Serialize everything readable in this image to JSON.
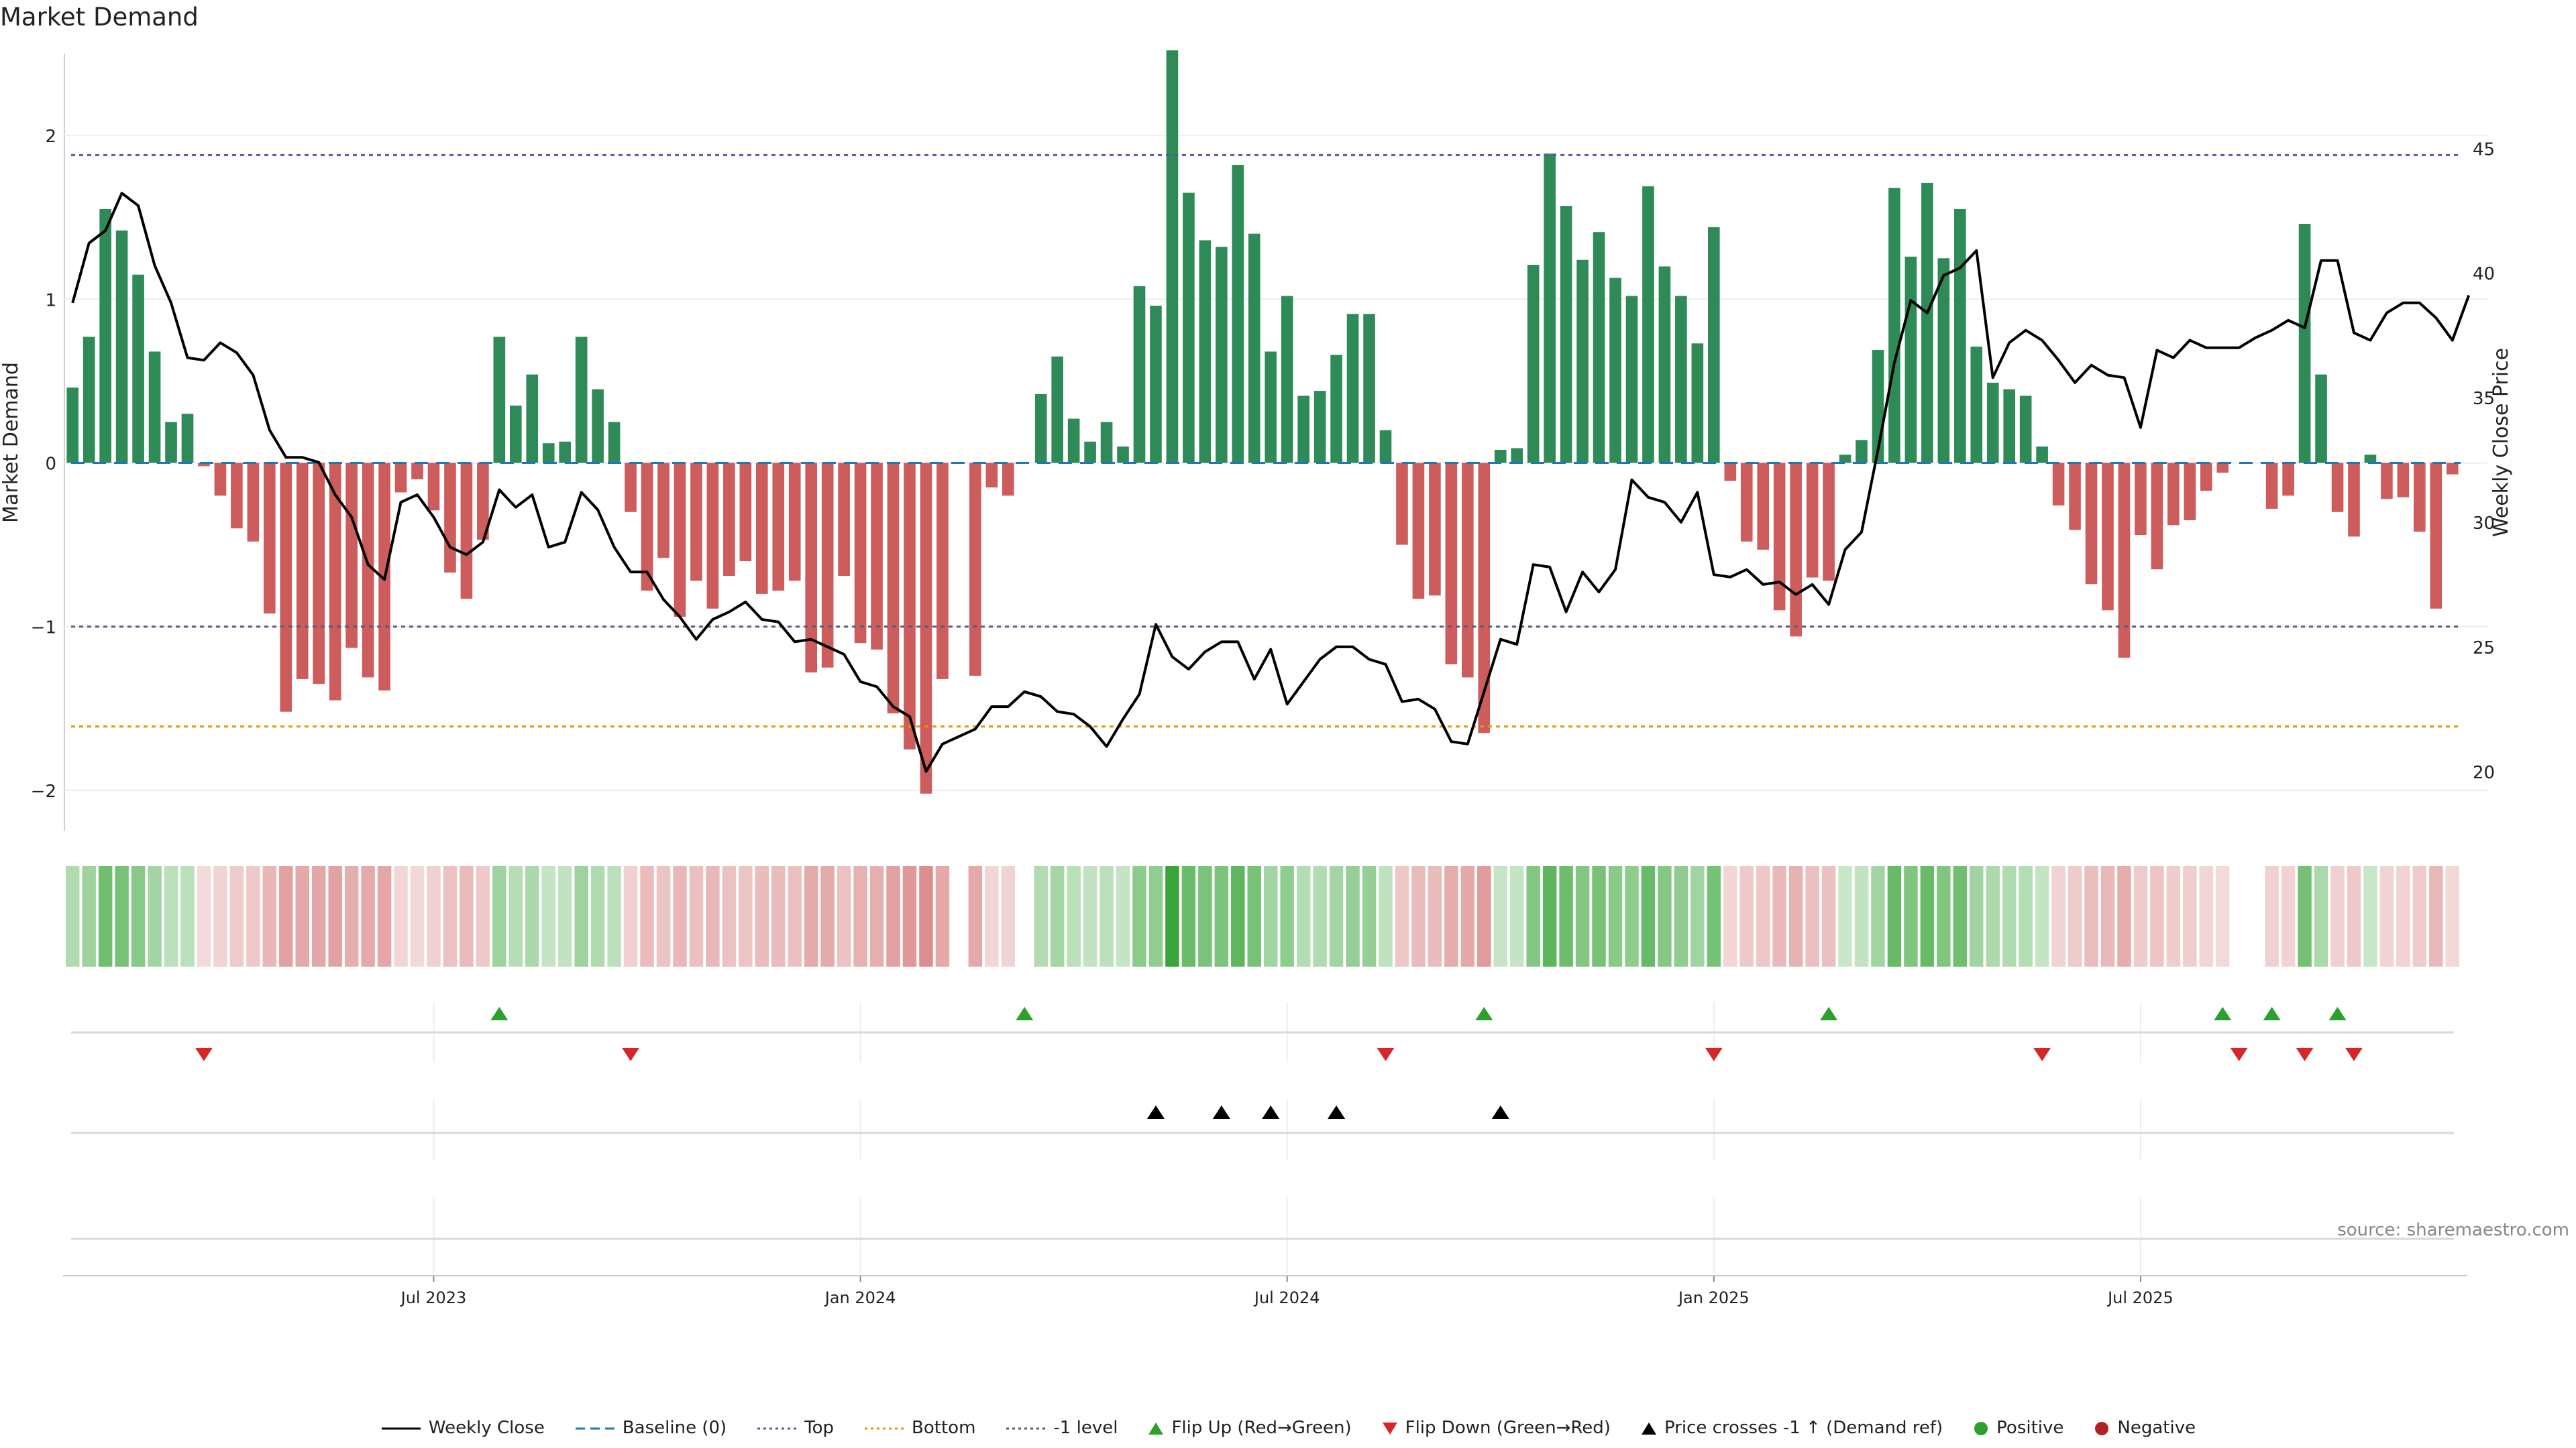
{
  "chart_data": {
    "type": "bar",
    "title": "Market Demand",
    "ylabel": "Market Demand",
    "y2label": "Weekly Close Price",
    "ylim": [
      -2.25,
      2.5
    ],
    "y2lim": [
      17.6,
      48.8
    ],
    "yticks": [
      "2",
      "1",
      "0",
      "−1",
      "−2"
    ],
    "ytick_values": [
      2,
      1,
      0,
      -1,
      -2
    ],
    "y2ticks": [
      "45",
      "40",
      "35",
      "30",
      "25",
      "20"
    ],
    "y2tick_values": [
      45,
      40,
      35,
      30,
      25,
      20
    ],
    "xtick_labels": [
      "Jul 2023",
      "Jan 2024",
      "Jul 2024",
      "Jan 2025",
      "Jul 2025"
    ],
    "xtick_week_index": [
      22,
      48,
      74,
      100,
      126
    ],
    "reference_lines": {
      "baseline": 0,
      "top": 1.88,
      "bottom": -1.61,
      "minus_one_level": -1.0
    },
    "demand": [
      0.46,
      0.77,
      1.55,
      1.42,
      1.15,
      0.68,
      0.25,
      0.3,
      -0.02,
      -0.2,
      -0.4,
      -0.48,
      -0.92,
      -1.52,
      -1.32,
      -1.35,
      -1.45,
      -1.13,
      -1.31,
      -1.39,
      -0.18,
      -0.1,
      -0.29,
      -0.67,
      -0.83,
      -0.47,
      0.77,
      0.35,
      0.54,
      0.12,
      0.13,
      0.77,
      0.45,
      0.25,
      -0.3,
      -0.78,
      -0.58,
      -0.94,
      -0.72,
      -0.89,
      -0.69,
      -0.6,
      -0.8,
      -0.78,
      -0.72,
      -1.28,
      -1.25,
      -0.69,
      -1.1,
      -1.14,
      -1.53,
      -1.75,
      -2.02,
      -1.32,
      null,
      -1.3,
      -0.15,
      -0.2,
      null,
      0.42,
      0.65,
      0.27,
      0.13,
      0.25,
      0.1,
      1.08,
      0.96,
      2.52,
      1.65,
      1.36,
      1.32,
      1.82,
      1.4,
      0.68,
      1.02,
      0.41,
      0.44,
      0.66,
      0.91,
      0.91,
      0.2,
      -0.5,
      -0.83,
      -0.81,
      -1.23,
      -1.31,
      -1.65,
      0.08,
      0.09,
      1.21,
      1.89,
      1.57,
      1.24,
      1.41,
      1.13,
      1.02,
      1.69,
      1.2,
      1.02,
      0.73,
      1.44,
      -0.11,
      -0.48,
      -0.53,
      -0.9,
      -1.06,
      -0.7,
      -0.72,
      0.05,
      0.14,
      0.69,
      1.68,
      1.26,
      1.71,
      1.25,
      1.55,
      0.71,
      0.49,
      0.45,
      0.41,
      0.1,
      -0.26,
      -0.41,
      -0.74,
      -0.9,
      -1.19,
      -0.44,
      -0.65,
      -0.38,
      -0.35,
      -0.17,
      -0.06,
      null,
      null,
      -0.28,
      -0.2,
      1.46,
      0.54,
      -0.3,
      -0.45,
      0.05,
      -0.22,
      -0.21,
      -0.42,
      -0.89,
      -0.07
    ],
    "close": [
      38.8,
      41.2,
      41.7,
      43.2,
      42.7,
      40.3,
      38.8,
      36.6,
      36.5,
      37.2,
      36.8,
      35.9,
      33.7,
      32.6,
      32.6,
      32.4,
      31.1,
      30.2,
      28.3,
      27.7,
      30.8,
      31.1,
      30.2,
      29.0,
      28.7,
      29.2,
      31.3,
      30.6,
      31.1,
      29.0,
      29.2,
      31.2,
      30.5,
      29.0,
      28.0,
      28.0,
      26.9,
      26.2,
      25.3,
      26.1,
      26.4,
      26.8,
      26.1,
      26.0,
      25.2,
      25.3,
      25.0,
      24.7,
      23.6,
      23.4,
      22.6,
      22.2,
      20.0,
      21.1,
      21.4,
      21.7,
      22.6,
      22.6,
      23.2,
      23.0,
      22.4,
      22.3,
      21.8,
      21.0,
      22.1,
      23.1,
      25.9,
      24.6,
      24.1,
      24.8,
      25.2,
      25.2,
      23.7,
      24.9,
      22.7,
      23.6,
      24.5,
      25.0,
      25.0,
      24.5,
      24.3,
      22.8,
      22.9,
      22.5,
      21.2,
      21.1,
      23.2,
      25.3,
      25.1,
      28.3,
      28.2,
      26.4,
      28.0,
      27.2,
      28.1,
      31.7,
      31.0,
      30.8,
      30.0,
      31.2,
      27.9,
      27.8,
      28.1,
      27.5,
      27.6,
      27.1,
      27.5,
      26.7,
      28.9,
      29.6,
      32.9,
      36.4,
      38.9,
      38.4,
      39.9,
      40.2,
      40.9,
      35.8,
      37.2,
      37.7,
      37.3,
      36.5,
      35.6,
      36.3,
      35.9,
      35.8,
      33.8,
      36.9,
      36.6,
      37.3,
      37.0,
      37.0,
      37.0,
      37.4,
      37.7,
      38.1,
      37.8,
      40.5,
      40.5,
      37.6,
      37.3,
      38.4,
      38.8,
      38.8,
      38.2,
      37.3,
      39.1
    ],
    "heat_strip": "demand-colored weekly strip (green = positive, red = negative, darker = stronger)",
    "flip_up_week_index": [
      26,
      58,
      86,
      107,
      131,
      134,
      138
    ],
    "flip_down_week_index": [
      8,
      34,
      80,
      100,
      120,
      132,
      136,
      139
    ],
    "price_cross_week_index": [
      66,
      70,
      73,
      77,
      87
    ],
    "source": "source: sharemaestro.com"
  },
  "legend": [
    {
      "label": "Weekly Close",
      "kind": "line",
      "color": "#000000",
      "dash": "solid"
    },
    {
      "label": "Baseline (0)",
      "kind": "line",
      "color": "#1f77b4",
      "dash": "dashed"
    },
    {
      "label": "Top",
      "kind": "line",
      "color": "#5b5b9a",
      "dash": "dotted"
    },
    {
      "label": "Bottom",
      "kind": "line",
      "color": "#e69500",
      "dash": "dotted"
    },
    {
      "label": "-1 level",
      "kind": "line",
      "color": "#5a5a7a",
      "dash": "dotted"
    },
    {
      "label": "Flip Up (Red→Green)",
      "kind": "triangle-up",
      "color": "#2ca02c"
    },
    {
      "label": "Flip Down (Green→Red)",
      "kind": "triangle-down",
      "color": "#d62728"
    },
    {
      "label": "Price crosses -1 ↑ (Demand ref)",
      "kind": "triangle-up",
      "color": "#000000"
    },
    {
      "label": "Positive",
      "kind": "circle",
      "color": "#2ca02c"
    },
    {
      "label": "Negative",
      "kind": "circle",
      "color": "#b22222"
    }
  ],
  "colors": {
    "positive_bar": "#2e8b57",
    "negative_bar": "#cd5c5c",
    "grid": "#eeeeee"
  }
}
